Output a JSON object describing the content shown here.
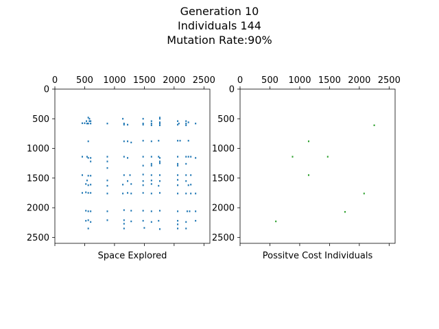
{
  "figure": {
    "title_lines": [
      "Generation 10",
      "Individuals 144",
      "Mutation Rate:90%"
    ]
  },
  "chart_data": [
    {
      "type": "scatter",
      "xlabel": "Space Explored",
      "ylabel": "",
      "xlim": [
        0,
        2600
      ],
      "ylim": [
        2600,
        0
      ],
      "x_ticks": [
        0,
        500,
        1000,
        1500,
        2000,
        2500
      ],
      "y_ticks": [
        0,
        500,
        1000,
        1500,
        2000,
        2500
      ],
      "x_axis_position": "top",
      "y_inverted": true,
      "grid": false,
      "marker_color": "#1f77b4",
      "series": [
        {
          "points": [
            [
              560,
              480
            ],
            [
              580,
              500
            ],
            [
              530,
              540
            ],
            [
              580,
              540
            ],
            [
              600,
              540
            ],
            [
              460,
              575
            ],
            [
              500,
              575
            ],
            [
              540,
              580
            ],
            [
              560,
              580
            ],
            [
              600,
              580
            ],
            [
              880,
              580
            ],
            [
              1140,
              500
            ],
            [
              1160,
              580
            ],
            [
              1160,
              600
            ],
            [
              1220,
              600
            ],
            [
              1480,
              500
            ],
            [
              1480,
              580
            ],
            [
              1480,
              600
            ],
            [
              1620,
              540
            ],
            [
              1620,
              580
            ],
            [
              1620,
              610
            ],
            [
              1760,
              480
            ],
            [
              1760,
              500
            ],
            [
              1760,
              560
            ],
            [
              1760,
              580
            ],
            [
              1760,
              610
            ],
            [
              2060,
              540
            ],
            [
              2080,
              580
            ],
            [
              2060,
              600
            ],
            [
              2200,
              540
            ],
            [
              2200,
              580
            ],
            [
              2200,
              610
            ],
            [
              2240,
              560
            ],
            [
              2360,
              580
            ],
            [
              560,
              880
            ],
            [
              1160,
              880
            ],
            [
              1220,
              880
            ],
            [
              1280,
              900
            ],
            [
              1480,
              870
            ],
            [
              1620,
              880
            ],
            [
              1740,
              870
            ],
            [
              2060,
              870
            ],
            [
              2100,
              870
            ],
            [
              2240,
              870
            ],
            [
              460,
              1140
            ],
            [
              540,
              1140
            ],
            [
              560,
              1160
            ],
            [
              600,
              1160
            ],
            [
              880,
              1140
            ],
            [
              1160,
              1140
            ],
            [
              1220,
              1160
            ],
            [
              1480,
              1140
            ],
            [
              1620,
              1140
            ],
            [
              1740,
              1140
            ],
            [
              1760,
              1160
            ],
            [
              2060,
              1140
            ],
            [
              2200,
              1140
            ],
            [
              2240,
              1140
            ],
            [
              2280,
              1140
            ],
            [
              2360,
              1160
            ],
            [
              600,
              1220
            ],
            [
              880,
              1220
            ],
            [
              1480,
              1290
            ],
            [
              1620,
              1260
            ],
            [
              1620,
              1290
            ],
            [
              1760,
              1220
            ],
            [
              1760,
              1250
            ],
            [
              2060,
              1260
            ],
            [
              2060,
              1290
            ],
            [
              2200,
              1260
            ],
            [
              880,
              1330
            ],
            [
              460,
              1450
            ],
            [
              560,
              1460
            ],
            [
              600,
              1460
            ],
            [
              1160,
              1450
            ],
            [
              1260,
              1450
            ],
            [
              1480,
              1440
            ],
            [
              1620,
              1450
            ],
            [
              1760,
              1450
            ],
            [
              2060,
              1450
            ],
            [
              2200,
              1450
            ],
            [
              2280,
              1450
            ],
            [
              540,
              1540
            ],
            [
              880,
              1540
            ],
            [
              1220,
              1550
            ],
            [
              1480,
              1550
            ],
            [
              1620,
              1540
            ],
            [
              1760,
              1550
            ],
            [
              2060,
              1530
            ],
            [
              2200,
              1550
            ],
            [
              520,
              1600
            ],
            [
              560,
              1620
            ],
            [
              600,
              1610
            ],
            [
              880,
              1630
            ],
            [
              1140,
              1610
            ],
            [
              1280,
              1600
            ],
            [
              1480,
              1620
            ],
            [
              1620,
              1600
            ],
            [
              1740,
              1630
            ],
            [
              2060,
              1620
            ],
            [
              2240,
              1620
            ],
            [
              2280,
              1610
            ],
            [
              460,
              1750
            ],
            [
              520,
              1740
            ],
            [
              560,
              1750
            ],
            [
              600,
              1750
            ],
            [
              880,
              1760
            ],
            [
              1140,
              1760
            ],
            [
              1220,
              1750
            ],
            [
              1280,
              1760
            ],
            [
              1480,
              1750
            ],
            [
              1620,
              1760
            ],
            [
              1760,
              1750
            ],
            [
              2060,
              1760
            ],
            [
              2200,
              1760
            ],
            [
              2280,
              1760
            ],
            [
              2360,
              1760
            ],
            [
              520,
              2050
            ],
            [
              560,
              2060
            ],
            [
              600,
              2060
            ],
            [
              880,
              2060
            ],
            [
              1160,
              2040
            ],
            [
              1280,
              2050
            ],
            [
              1480,
              2050
            ],
            [
              1620,
              2060
            ],
            [
              1760,
              2050
            ],
            [
              2060,
              2060
            ],
            [
              2220,
              2060
            ],
            [
              2260,
              2060
            ],
            [
              2360,
              2060
            ],
            [
              520,
              2220
            ],
            [
              560,
              2210
            ],
            [
              600,
              2240
            ],
            [
              880,
              2210
            ],
            [
              1160,
              2210
            ],
            [
              1160,
              2270
            ],
            [
              1280,
              2230
            ],
            [
              1480,
              2220
            ],
            [
              1620,
              2240
            ],
            [
              1740,
              2220
            ],
            [
              2060,
              2220
            ],
            [
              2060,
              2280
            ],
            [
              2200,
              2240
            ],
            [
              2360,
              2220
            ],
            [
              560,
              2350
            ],
            [
              1160,
              2350
            ],
            [
              1500,
              2340
            ],
            [
              1760,
              2360
            ],
            [
              2060,
              2350
            ],
            [
              2200,
              2350
            ]
          ]
        }
      ]
    },
    {
      "type": "scatter",
      "xlabel": "Possitve Cost Individuals",
      "ylabel": "",
      "xlim": [
        0,
        2600
      ],
      "ylim": [
        2600,
        0
      ],
      "x_ticks": [
        0,
        500,
        1000,
        1500,
        2000,
        2500
      ],
      "y_ticks": [
        0,
        500,
        1000,
        1500,
        2000,
        2500
      ],
      "x_axis_position": "top",
      "y_inverted": true,
      "grid": false,
      "marker_color": "#2ca02c",
      "series": [
        {
          "points": [
            [
              2250,
              610
            ],
            [
              1150,
              880
            ],
            [
              880,
              1140
            ],
            [
              1470,
              1140
            ],
            [
              1150,
              1450
            ],
            [
              2080,
              1760
            ],
            [
              1760,
              2070
            ],
            [
              600,
              2230
            ]
          ]
        }
      ]
    }
  ]
}
